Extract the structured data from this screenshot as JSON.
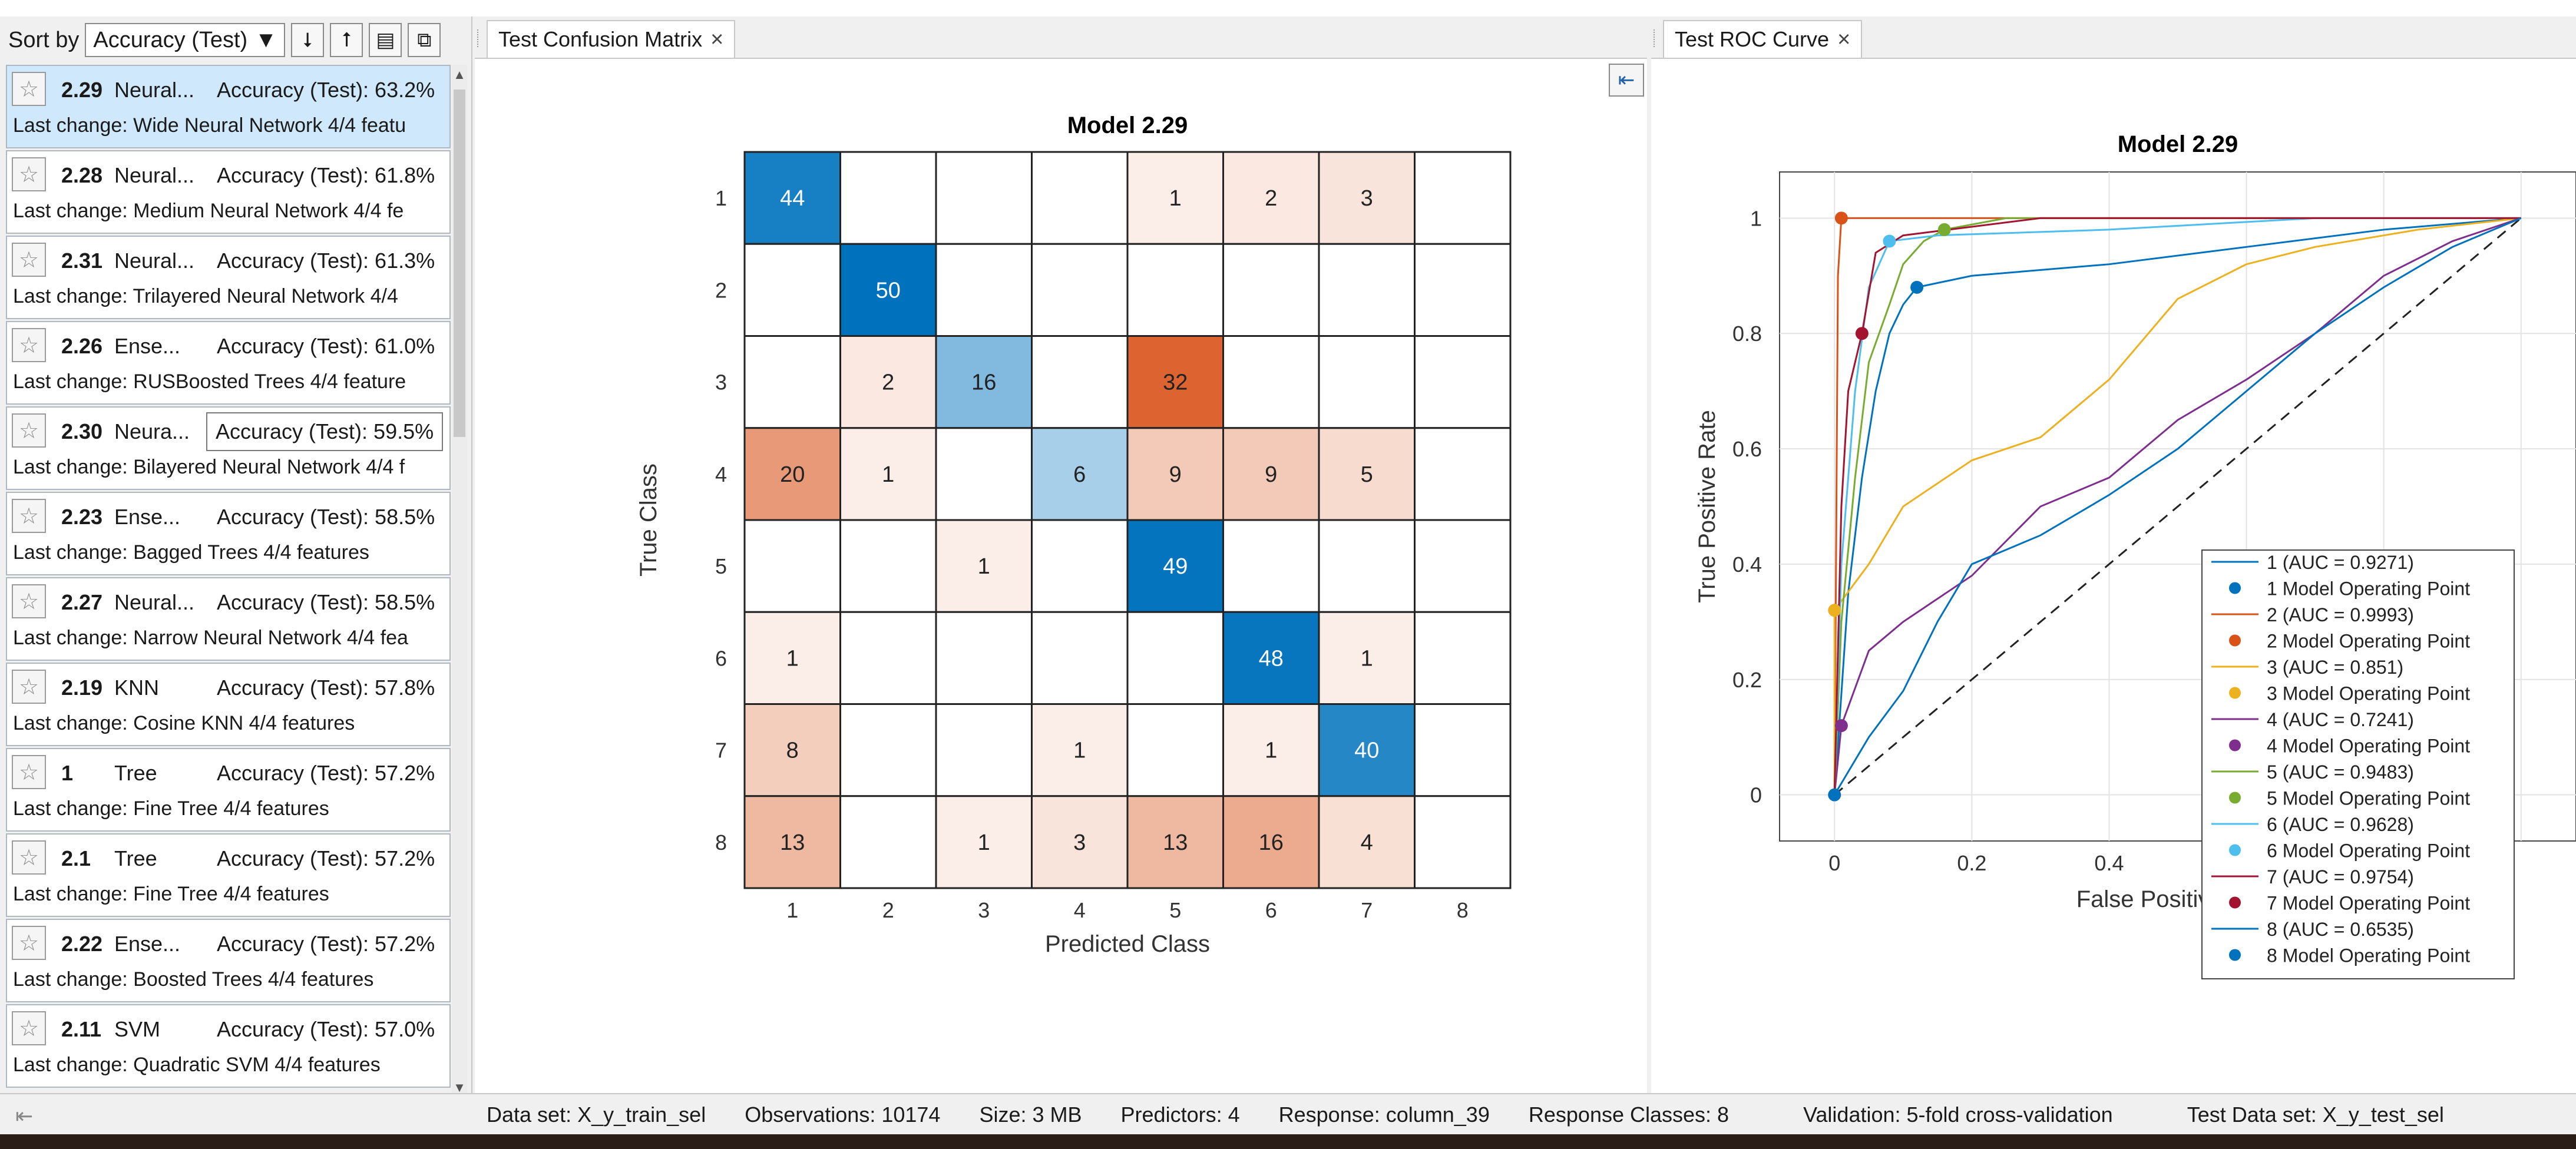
{
  "sort": {
    "label": "Sort by",
    "selected": "Accuracy (Test)"
  },
  "models": [
    {
      "id": "2.29",
      "type": "Neural...",
      "accuracy": "Accuracy (Test): 63.2%",
      "change": "Last change: Wide Neural Network   4/4 featu"
    },
    {
      "id": "2.28",
      "type": "Neural...",
      "accuracy": "Accuracy (Test): 61.8%",
      "change": "Last change: Medium Neural Network   4/4 fe"
    },
    {
      "id": "2.31",
      "type": "Neural...",
      "accuracy": "Accuracy (Test): 61.3%",
      "change": "Last change: Trilayered Neural Network   4/4"
    },
    {
      "id": "2.26",
      "type": "Ense...",
      "accuracy": "Accuracy (Test): 61.0%",
      "change": "Last change: RUSBoosted Trees   4/4 feature"
    },
    {
      "id": "2.30",
      "type": "Neura...",
      "accuracy": "Accuracy (Test): 59.5%",
      "change": "Last change: Bilayered Neural Network   4/4 f"
    },
    {
      "id": "2.23",
      "type": "Ense...",
      "accuracy": "Accuracy (Test): 58.5%",
      "change": "Last change: Bagged Trees        4/4 features"
    },
    {
      "id": "2.27",
      "type": "Neural...",
      "accuracy": "Accuracy (Test): 58.5%",
      "change": "Last change: Narrow Neural Network   4/4 fea"
    },
    {
      "id": "2.19",
      "type": "KNN",
      "accuracy": "Accuracy (Test): 57.8%",
      "change": "Last change: Cosine KNN          4/4 features"
    },
    {
      "id": "1",
      "type": "Tree",
      "accuracy": "Accuracy (Test): 57.2%",
      "change": "Last change: Fine Tree           4/4 features"
    },
    {
      "id": "2.1",
      "type": "Tree",
      "accuracy": "Accuracy (Test): 57.2%",
      "change": "Last change: Fine Tree           4/4 features"
    },
    {
      "id": "2.22",
      "type": "Ense...",
      "accuracy": "Accuracy (Test): 57.2%",
      "change": "Last change: Boosted Trees       4/4 features"
    },
    {
      "id": "2.11",
      "type": "SVM",
      "accuracy": "Accuracy (Test): 57.0%",
      "change": "Last change: Quadratic SVM       4/4 features"
    }
  ],
  "tabs": {
    "confusion": "Test Confusion Matrix",
    "roc": "Test ROC Curve"
  },
  "chart_data": [
    {
      "type": "heatmap",
      "title": "Model 2.29",
      "xlabel": "Predicted Class",
      "ylabel": "True Class",
      "classes": [
        "1",
        "2",
        "3",
        "4",
        "5",
        "6",
        "7",
        "8"
      ],
      "matrix": [
        [
          44,
          0,
          0,
          0,
          1,
          2,
          3,
          0
        ],
        [
          0,
          50,
          0,
          0,
          0,
          0,
          0,
          0
        ],
        [
          0,
          2,
          16,
          0,
          32,
          0,
          0,
          0
        ],
        [
          20,
          1,
          0,
          6,
          9,
          9,
          5,
          0
        ],
        [
          0,
          0,
          1,
          0,
          49,
          0,
          0,
          0
        ],
        [
          1,
          0,
          0,
          0,
          0,
          48,
          1,
          0
        ],
        [
          8,
          0,
          0,
          1,
          0,
          1,
          40,
          0
        ],
        [
          13,
          0,
          1,
          3,
          13,
          16,
          4,
          0
        ]
      ],
      "colors": {
        "diag": "#0072bd",
        "offdiag": "#d95319"
      }
    },
    {
      "type": "line",
      "title": "Model 2.29",
      "xlabel": "False Positive Rate",
      "ylabel": "True Positive Rate",
      "xlim": [
        -0.08,
        1.08
      ],
      "ylim": [
        -0.08,
        1.08
      ],
      "xticks": [
        "0",
        "0.2",
        "0.4"
      ],
      "xtick_values": [
        0,
        0.2,
        0.4
      ],
      "yticks": [
        "0",
        "0.2",
        "0.4",
        "0.6",
        "0.8",
        "1"
      ],
      "ytick_values": [
        0,
        0.2,
        0.4,
        0.6,
        0.8,
        1
      ],
      "legend_position": "bottom-right",
      "series": [
        {
          "name": "1 (AUC = 0.9271)",
          "color": "#0072bd",
          "op_label": "1 Model Operating Point",
          "op": [
            0.12,
            0.88
          ],
          "points": [
            [
              0,
              0
            ],
            [
              0.02,
              0.35
            ],
            [
              0.04,
              0.55
            ],
            [
              0.06,
              0.7
            ],
            [
              0.08,
              0.8
            ],
            [
              0.1,
              0.85
            ],
            [
              0.12,
              0.88
            ],
            [
              0.2,
              0.9
            ],
            [
              0.4,
              0.92
            ],
            [
              0.6,
              0.95
            ],
            [
              0.8,
              0.98
            ],
            [
              1,
              1
            ]
          ]
        },
        {
          "name": "2 (AUC = 0.9993)",
          "color": "#d95319",
          "op_label": "2 Model Operating Point",
          "op": [
            0.01,
            1.0
          ],
          "points": [
            [
              0,
              0
            ],
            [
              0.005,
              0.9
            ],
            [
              0.01,
              1
            ],
            [
              1,
              1
            ]
          ]
        },
        {
          "name": "3 (AUC = 0.851)",
          "color": "#edb120",
          "op_label": "3 Model Operating Point",
          "op": [
            0.0,
            0.32
          ],
          "points": [
            [
              0,
              0
            ],
            [
              0,
              0.32
            ],
            [
              0.05,
              0.4
            ],
            [
              0.1,
              0.5
            ],
            [
              0.2,
              0.58
            ],
            [
              0.3,
              0.62
            ],
            [
              0.4,
              0.72
            ],
            [
              0.5,
              0.86
            ],
            [
              0.6,
              0.92
            ],
            [
              0.7,
              0.95
            ],
            [
              0.85,
              0.98
            ],
            [
              1,
              1
            ]
          ]
        },
        {
          "name": "4 (AUC = 0.7241)",
          "color": "#7e2f8e",
          "op_label": "4 Model Operating Point",
          "op": [
            0.01,
            0.12
          ],
          "points": [
            [
              0,
              0
            ],
            [
              0.01,
              0.12
            ],
            [
              0.05,
              0.25
            ],
            [
              0.1,
              0.3
            ],
            [
              0.2,
              0.38
            ],
            [
              0.3,
              0.5
            ],
            [
              0.4,
              0.55
            ],
            [
              0.5,
              0.65
            ],
            [
              0.6,
              0.72
            ],
            [
              0.7,
              0.8
            ],
            [
              0.8,
              0.9
            ],
            [
              0.9,
              0.96
            ],
            [
              1,
              1
            ]
          ]
        },
        {
          "name": "5 (AUC = 0.9483)",
          "color": "#77ac30",
          "op_label": "5 Model Operating Point",
          "op": [
            0.16,
            0.98
          ],
          "points": [
            [
              0,
              0
            ],
            [
              0.01,
              0.3
            ],
            [
              0.03,
              0.55
            ],
            [
              0.05,
              0.75
            ],
            [
              0.08,
              0.85
            ],
            [
              0.1,
              0.92
            ],
            [
              0.13,
              0.96
            ],
            [
              0.16,
              0.98
            ],
            [
              0.25,
              1
            ],
            [
              1,
              1
            ]
          ]
        },
        {
          "name": "6 (AUC = 0.9628)",
          "color": "#4dbeee",
          "op_label": "6 Model Operating Point",
          "op": [
            0.08,
            0.96
          ],
          "points": [
            [
              0,
              0
            ],
            [
              0.01,
              0.4
            ],
            [
              0.03,
              0.7
            ],
            [
              0.05,
              0.88
            ],
            [
              0.08,
              0.96
            ],
            [
              0.15,
              0.97
            ],
            [
              0.4,
              0.98
            ],
            [
              0.7,
              1
            ],
            [
              1,
              1
            ]
          ]
        },
        {
          "name": "7 (AUC = 0.9754)",
          "color": "#a2142f",
          "op_label": "7 Model Operating Point",
          "op": [
            0.04,
            0.8
          ],
          "points": [
            [
              0,
              0
            ],
            [
              0.01,
              0.5
            ],
            [
              0.02,
              0.7
            ],
            [
              0.04,
              0.8
            ],
            [
              0.06,
              0.94
            ],
            [
              0.1,
              0.97
            ],
            [
              0.3,
              1
            ],
            [
              1,
              1
            ]
          ]
        },
        {
          "name": "8 (AUC = 0.6535)",
          "color": "#0072bd",
          "op_label": "8 Model Operating Point",
          "op": [
            0.0,
            0.0
          ],
          "points": [
            [
              0,
              0
            ],
            [
              0.05,
              0.1
            ],
            [
              0.1,
              0.18
            ],
            [
              0.15,
              0.3
            ],
            [
              0.2,
              0.4
            ],
            [
              0.3,
              0.45
            ],
            [
              0.4,
              0.52
            ],
            [
              0.5,
              0.6
            ],
            [
              0.6,
              0.7
            ],
            [
              0.7,
              0.8
            ],
            [
              0.8,
              0.88
            ],
            [
              0.9,
              0.95
            ],
            [
              1,
              1
            ]
          ]
        }
      ]
    }
  ],
  "status": {
    "dataset": "Data set: X_y_train_sel",
    "observations": "Observations: 10174",
    "size": "Size: 3 MB",
    "predictors": "Predictors: 4",
    "response": "Response: column_39",
    "response_classes": "Response Classes: 8",
    "validation": "Validation: 5-fold cross-validation",
    "test_dataset": "Test Data set: X_y_test_sel"
  }
}
